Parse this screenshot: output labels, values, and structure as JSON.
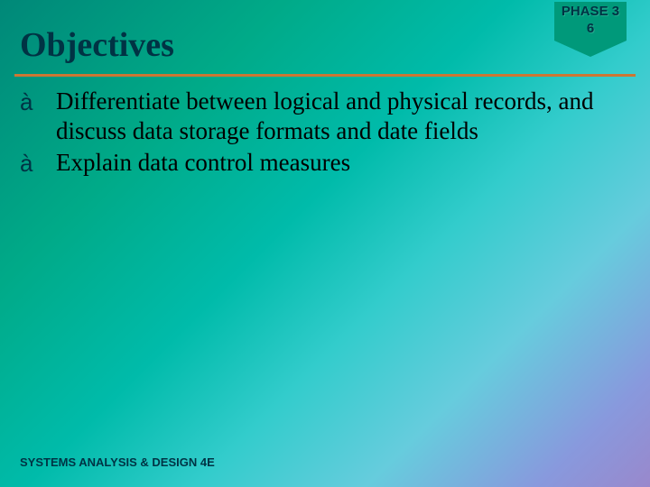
{
  "slide": {
    "title": "Objectives",
    "title_color": "#003344",
    "title_fontsize": 38,
    "underline_color": "#cc7733",
    "background_gradient": [
      "#008878",
      "#00aa88",
      "#00bbaa",
      "#33cccc",
      "#66ccdd",
      "#8899dd",
      "#9988cc"
    ]
  },
  "phase_badge": {
    "line1": "PHASE 3",
    "line2": "6",
    "bg_color": "#00997a",
    "text_color": "#003344",
    "fontsize": 15
  },
  "bullets": {
    "arrow_glyph": "à",
    "arrow_color": "#003344",
    "text_color": "#000000",
    "fontsize": 27,
    "items": [
      {
        "text": "Differentiate between logical and physical records, and discuss data storage formats and date fields"
      },
      {
        "text": "Explain data control measures"
      }
    ]
  },
  "footer": {
    "text": "SYSTEMS ANALYSIS & DESIGN 4E",
    "color": "#003344",
    "fontsize": 13
  }
}
